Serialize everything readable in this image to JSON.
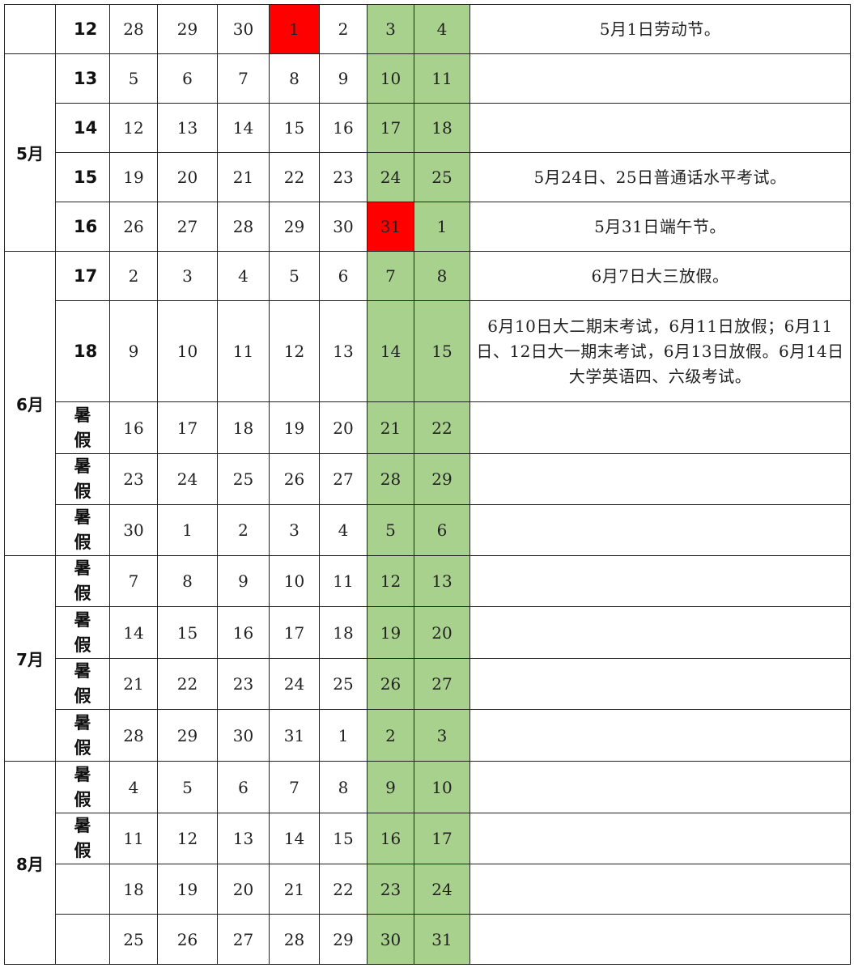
{
  "colors": {
    "weekend": "#a9d18e",
    "holiday": "#ff0000"
  },
  "months": [
    {
      "label": "",
      "start": 0,
      "span": 1
    },
    {
      "label": "5月",
      "start": 1,
      "span": 4
    },
    {
      "label": "6月",
      "start": 5,
      "span": 5
    },
    {
      "label": "7月",
      "start": 10,
      "span": 4
    },
    {
      "label": "8月",
      "start": 14,
      "span": 4
    }
  ],
  "rows": [
    {
      "week": "12",
      "days": [
        "28",
        "29",
        "30",
        "1",
        "2",
        "3",
        "4"
      ],
      "red": [
        3
      ],
      "note": "5月1日劳动节。"
    },
    {
      "week": "13",
      "days": [
        "5",
        "6",
        "7",
        "8",
        "9",
        "10",
        "11"
      ],
      "red": [],
      "note": ""
    },
    {
      "week": "14",
      "days": [
        "12",
        "13",
        "14",
        "15",
        "16",
        "17",
        "18"
      ],
      "red": [],
      "note": ""
    },
    {
      "week": "15",
      "days": [
        "19",
        "20",
        "21",
        "22",
        "23",
        "24",
        "25"
      ],
      "red": [],
      "note": "5月24日、25日普通话水平考试。"
    },
    {
      "week": "16",
      "days": [
        "26",
        "27",
        "28",
        "29",
        "30",
        "31",
        "1"
      ],
      "red": [
        5
      ],
      "note": "5月31日端午节。"
    },
    {
      "week": "17",
      "days": [
        "2",
        "3",
        "4",
        "5",
        "6",
        "7",
        "8"
      ],
      "red": [],
      "note": "6月7日大三放假。"
    },
    {
      "week": "18",
      "days": [
        "9",
        "10",
        "11",
        "12",
        "13",
        "14",
        "15"
      ],
      "red": [],
      "note": "6月10日大二期末考试，6月11日放假；6月11日、12日大一期末考试，6月13日放假。6月14日大学英语四、六级考试。"
    },
    {
      "week": "暑假",
      "days": [
        "16",
        "17",
        "18",
        "19",
        "20",
        "21",
        "22"
      ],
      "red": [],
      "note": ""
    },
    {
      "week": "暑假",
      "days": [
        "23",
        "24",
        "25",
        "26",
        "27",
        "28",
        "29"
      ],
      "red": [],
      "note": ""
    },
    {
      "week": "暑假",
      "days": [
        "30",
        "1",
        "2",
        "3",
        "4",
        "5",
        "6"
      ],
      "red": [],
      "note": ""
    },
    {
      "week": "暑假",
      "days": [
        "7",
        "8",
        "9",
        "10",
        "11",
        "12",
        "13"
      ],
      "red": [],
      "note": ""
    },
    {
      "week": "暑假",
      "days": [
        "14",
        "15",
        "16",
        "17",
        "18",
        "19",
        "20"
      ],
      "red": [],
      "note": ""
    },
    {
      "week": "暑假",
      "days": [
        "21",
        "22",
        "23",
        "24",
        "25",
        "26",
        "27"
      ],
      "red": [],
      "note": ""
    },
    {
      "week": "暑假",
      "days": [
        "28",
        "29",
        "30",
        "31",
        "1",
        "2",
        "3"
      ],
      "red": [],
      "note": ""
    },
    {
      "week": "暑假",
      "days": [
        "4",
        "5",
        "6",
        "7",
        "8",
        "9",
        "10"
      ],
      "red": [],
      "note": ""
    },
    {
      "week": "暑假",
      "days": [
        "11",
        "12",
        "13",
        "14",
        "15",
        "16",
        "17"
      ],
      "red": [],
      "note": ""
    },
    {
      "week": "",
      "days": [
        "18",
        "19",
        "20",
        "21",
        "22",
        "23",
        "24"
      ],
      "red": [],
      "note": ""
    },
    {
      "week": "",
      "days": [
        "25",
        "26",
        "27",
        "28",
        "29",
        "30",
        "31"
      ],
      "red": [],
      "note": ""
    }
  ]
}
